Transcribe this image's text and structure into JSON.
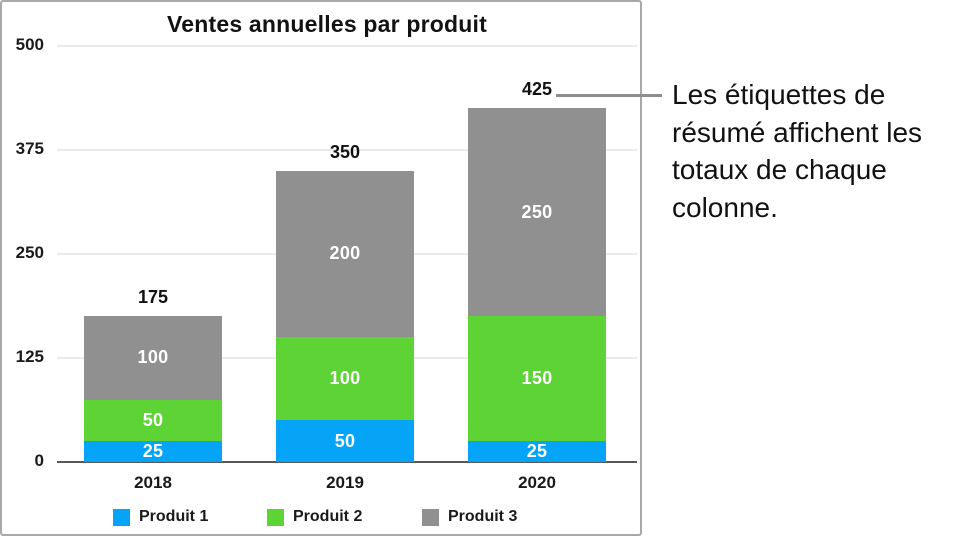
{
  "callout": {
    "text": "Les étiquettes de résumé affichent les totaux de chaque colonne.",
    "lines": [
      "Les étiquettes de",
      "résumé affichent les",
      "totaux de chaque",
      "colonne."
    ]
  },
  "chart_data": {
    "type": "bar",
    "stacked": true,
    "title": "Ventes annuelles par produit",
    "categories": [
      "2018",
      "2019",
      "2020"
    ],
    "series": [
      {
        "name": "Produit 1",
        "color": "#05a4f6",
        "values": [
          25,
          50,
          25
        ]
      },
      {
        "name": "Produit 2",
        "color": "#5dd335",
        "values": [
          50,
          100,
          150
        ]
      },
      {
        "name": "Produit 3",
        "color": "#909090",
        "values": [
          100,
          200,
          250
        ]
      }
    ],
    "totals": [
      175,
      350,
      425
    ],
    "xlabel": "",
    "ylabel": "",
    "ylim": [
      0,
      500
    ],
    "yticks": [
      500,
      375,
      250,
      125,
      0
    ],
    "grid": true,
    "legend_position": "bottom",
    "value_label_color": "#ffffff",
    "axis_line_color": "#58585a",
    "gridline_color": "#ebebeb"
  }
}
